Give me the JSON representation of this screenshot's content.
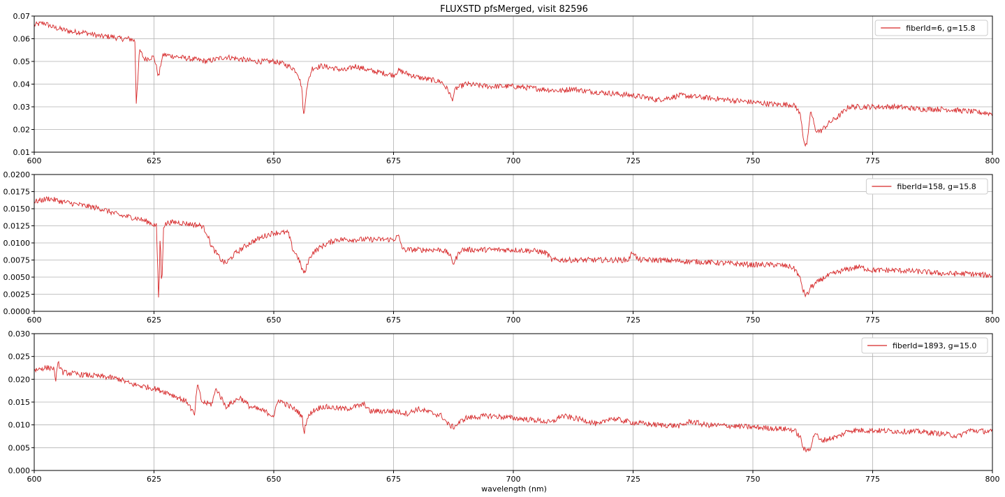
{
  "figure": {
    "title": "FLUXSTD pfsMerged, visit 82596",
    "xlabel": "wavelength (nm)",
    "line_color": "#d62728"
  },
  "chart_data": [
    {
      "type": "line",
      "title": "FLUXSTD pfsMerged, visit 82596",
      "xlabel": "",
      "ylabel": "",
      "xlim": [
        600,
        800
      ],
      "ylim": [
        0.01,
        0.07
      ],
      "grid": true,
      "legend_position": "top-right",
      "xticks": [
        "600",
        "625",
        "650",
        "675",
        "700",
        "725",
        "750",
        "775",
        "800"
      ],
      "yticks": [
        "0.01",
        "0.02",
        "0.03",
        "0.04",
        "0.05",
        "0.06",
        "0.07"
      ],
      "series": [
        {
          "name": "fiberId=6, g=15.8",
          "x": [
            600,
            602,
            604,
            606,
            608,
            610,
            612,
            614,
            616,
            618,
            620,
            621,
            621.3,
            621.6,
            622,
            623,
            625,
            626,
            626.5,
            627,
            630,
            633,
            636,
            640,
            643,
            646,
            650,
            652,
            654,
            655,
            655.8,
            656.3,
            656.8,
            658,
            660,
            665,
            667,
            670,
            675,
            676,
            680,
            685,
            686.5,
            687.2,
            688,
            690,
            695,
            700,
            705,
            710,
            712,
            715,
            720,
            725,
            728,
            730,
            735,
            740,
            745,
            750,
            755,
            758,
            759,
            760,
            760.5,
            761,
            761.5,
            762,
            762.5,
            763,
            764,
            765,
            766,
            768,
            770,
            775,
            776,
            780,
            785,
            790,
            795,
            800
          ],
          "y": [
            0.066,
            0.067,
            0.065,
            0.064,
            0.063,
            0.063,
            0.062,
            0.061,
            0.061,
            0.06,
            0.06,
            0.059,
            0.032,
            0.042,
            0.055,
            0.051,
            0.052,
            0.043,
            0.05,
            0.053,
            0.052,
            0.051,
            0.05,
            0.052,
            0.051,
            0.05,
            0.05,
            0.049,
            0.047,
            0.045,
            0.039,
            0.025,
            0.038,
            0.047,
            0.048,
            0.046,
            0.048,
            0.046,
            0.044,
            0.046,
            0.043,
            0.041,
            0.037,
            0.033,
            0.038,
            0.04,
            0.039,
            0.039,
            0.038,
            0.037,
            0.038,
            0.037,
            0.036,
            0.035,
            0.034,
            0.033,
            0.035,
            0.034,
            0.033,
            0.032,
            0.031,
            0.031,
            0.03,
            0.026,
            0.017,
            0.012,
            0.016,
            0.028,
            0.025,
            0.02,
            0.019,
            0.021,
            0.023,
            0.026,
            0.03,
            0.03,
            0.03,
            0.03,
            0.029,
            0.029,
            0.028,
            0.027
          ]
        }
      ]
    },
    {
      "type": "line",
      "title": "",
      "xlabel": "",
      "ylabel": "",
      "xlim": [
        600,
        800
      ],
      "ylim": [
        0.0,
        0.02
      ],
      "grid": true,
      "legend_position": "top-right",
      "xticks": [
        "600",
        "625",
        "650",
        "675",
        "700",
        "725",
        "750",
        "775",
        "800"
      ],
      "yticks": [
        "0.0000",
        "0.0025",
        "0.0050",
        "0.0075",
        "0.0100",
        "0.0125",
        "0.0150",
        "0.0175",
        "0.0200"
      ],
      "series": [
        {
          "name": "fiberId=158, g=15.8",
          "x": [
            600,
            603,
            606,
            610,
            614,
            618,
            620,
            622,
            624,
            625.5,
            626,
            626.3,
            626.6,
            627,
            628,
            630,
            632,
            635,
            636,
            637,
            638,
            639,
            640,
            642,
            645,
            648,
            650,
            653,
            654,
            655,
            656,
            656.5,
            657,
            658,
            660,
            663,
            667,
            670,
            675,
            676,
            677,
            680,
            685,
            686.5,
            687.5,
            689,
            695,
            700,
            705,
            707,
            708,
            712,
            718,
            724,
            725,
            726,
            730,
            740,
            745,
            750,
            755,
            758,
            759,
            760,
            760.5,
            761,
            761.5,
            762,
            763,
            765,
            768,
            770,
            772,
            775,
            780,
            785,
            790,
            795,
            800
          ],
          "y": [
            0.016,
            0.0165,
            0.016,
            0.0155,
            0.015,
            0.014,
            0.0138,
            0.0135,
            0.013,
            0.0125,
            0.001,
            0.012,
            0.003,
            0.0125,
            0.013,
            0.013,
            0.0128,
            0.0125,
            0.0115,
            0.0095,
            0.0085,
            0.0075,
            0.007,
            0.0085,
            0.01,
            0.011,
            0.0115,
            0.0115,
            0.009,
            0.008,
            0.006,
            0.0055,
            0.007,
            0.0085,
            0.0095,
            0.0105,
            0.0105,
            0.0105,
            0.0105,
            0.011,
            0.009,
            0.009,
            0.009,
            0.0085,
            0.007,
            0.009,
            0.009,
            0.009,
            0.0088,
            0.0085,
            0.0075,
            0.0075,
            0.0075,
            0.0075,
            0.0088,
            0.0075,
            0.0075,
            0.0072,
            0.007,
            0.0068,
            0.0068,
            0.0065,
            0.006,
            0.0045,
            0.003,
            0.0024,
            0.0025,
            0.0035,
            0.004,
            0.005,
            0.0058,
            0.0062,
            0.0065,
            0.006,
            0.006,
            0.0058,
            0.0055,
            0.0055,
            0.0052
          ]
        }
      ]
    },
    {
      "type": "line",
      "title": "",
      "xlabel": "wavelength (nm)",
      "ylabel": "",
      "xlim": [
        600,
        800
      ],
      "ylim": [
        0.0,
        0.03
      ],
      "grid": true,
      "legend_position": "top-right",
      "xticks": [
        "600",
        "625",
        "650",
        "675",
        "700",
        "725",
        "750",
        "775",
        "800"
      ],
      "yticks": [
        "0.000",
        "0.005",
        "0.010",
        "0.015",
        "0.020",
        "0.025",
        "0.030"
      ],
      "series": [
        {
          "name": "fiberId=1893, g=15.0",
          "x": [
            600,
            602,
            604,
            604.5,
            605,
            606,
            610,
            615,
            618,
            620,
            625,
            628,
            630,
            632,
            633.5,
            634,
            635,
            637,
            638,
            640,
            643,
            645,
            648,
            650,
            651,
            655,
            656,
            656.3,
            656.8,
            658,
            660,
            665,
            669,
            670,
            675,
            678,
            680,
            685,
            686.5,
            687.5,
            690,
            695,
            700,
            705,
            708,
            710,
            715,
            718,
            720,
            725,
            730,
            735,
            737,
            740,
            745,
            750,
            755,
            758,
            759,
            760,
            760.5,
            761,
            762,
            763,
            764,
            766,
            768,
            770,
            775,
            780,
            785,
            790,
            793,
            795,
            800
          ],
          "y": [
            0.022,
            0.0225,
            0.0225,
            0.02,
            0.0235,
            0.0215,
            0.021,
            0.0205,
            0.02,
            0.019,
            0.018,
            0.017,
            0.016,
            0.015,
            0.012,
            0.019,
            0.015,
            0.0145,
            0.018,
            0.014,
            0.016,
            0.014,
            0.013,
            0.012,
            0.0155,
            0.013,
            0.0115,
            0.008,
            0.011,
            0.013,
            0.014,
            0.0135,
            0.0145,
            0.013,
            0.013,
            0.0125,
            0.0135,
            0.012,
            0.01,
            0.0095,
            0.0115,
            0.012,
            0.0115,
            0.011,
            0.0105,
            0.012,
            0.011,
            0.01,
            0.0115,
            0.0105,
            0.01,
            0.0098,
            0.0108,
            0.01,
            0.0098,
            0.0095,
            0.0092,
            0.009,
            0.0085,
            0.007,
            0.005,
            0.0042,
            0.005,
            0.0085,
            0.0065,
            0.007,
            0.0075,
            0.0088,
            0.0088,
            0.0086,
            0.0085,
            0.008,
            0.0075,
            0.0088,
            0.0085
          ]
        }
      ]
    }
  ]
}
